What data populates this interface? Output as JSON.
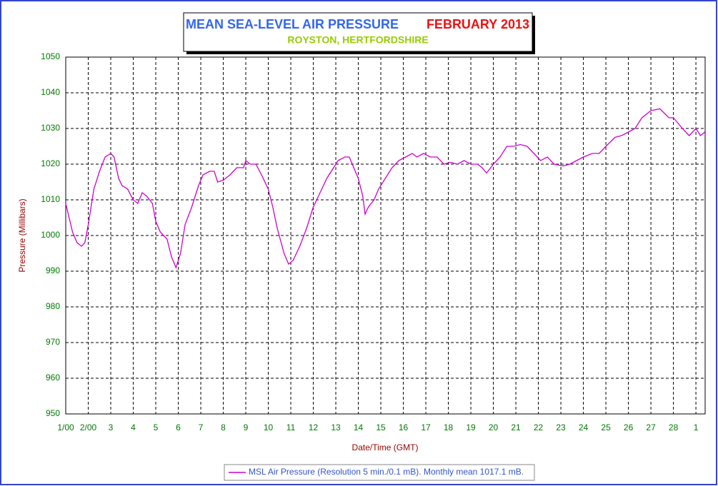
{
  "chart_data": {
    "type": "line",
    "title": "MEAN SEA-LEVEL AIR PRESSURE",
    "title_date": "FEBRUARY 2013",
    "subtitle": "ROYSTON, HERTFORDSHIRE",
    "xlabel": "Date/Time (GMT)",
    "ylabel": "Pressure (Millibars)",
    "x": [
      1,
      1.3,
      1.5,
      1.7,
      1.85,
      2,
      2.25,
      2.5,
      2.75,
      3,
      3.15,
      3.35,
      3.5,
      3.75,
      4,
      4.2,
      4.4,
      4.6,
      4.85,
      5,
      5.2,
      5.5,
      5.7,
      5.9,
      6.1,
      6.3,
      6.6,
      6.9,
      7.1,
      7.4,
      7.6,
      7.75,
      8,
      8.3,
      8.6,
      8.9,
      9,
      9.2,
      9.45,
      9.7,
      10,
      10.2,
      10.4,
      10.7,
      10.9,
      11.1,
      11.4,
      11.7,
      12,
      12.3,
      12.6,
      12.9,
      13.1,
      13.4,
      13.6,
      13.8,
      14,
      14.2,
      14.3,
      14.45,
      14.7,
      14.9,
      15.2,
      15.5,
      15.8,
      16.1,
      16.4,
      16.6,
      16.9,
      17.2,
      17.5,
      17.8,
      18.1,
      18.4,
      18.7,
      19,
      19.3,
      19.5,
      19.7,
      20,
      20.3,
      20.6,
      20.9,
      21.2,
      21.5,
      21.8,
      22.1,
      22.4,
      22.7,
      23.1,
      23.4,
      23.7,
      24,
      24.4,
      24.7,
      25,
      25.4,
      25.7,
      26,
      26.3,
      26.6,
      27,
      27.4,
      27.8,
      28,
      28.4,
      28.7,
      29,
      29.2,
      29.4
    ],
    "series": [
      {
        "name": "MSL Air Pressure (Resolution 5 min./0.1 mB). Monthly mean 1017.1 mB.",
        "color": "#d000d0",
        "values": [
          1009,
          1001,
          998,
          997,
          998,
          1003,
          1013,
          1018,
          1022,
          1023,
          1022,
          1016,
          1014,
          1013,
          1010,
          1009,
          1012,
          1011,
          1009,
          1004,
          1001,
          999,
          994,
          991,
          995,
          1003,
          1008,
          1014,
          1017,
          1018,
          1018,
          1015,
          1015.5,
          1017,
          1019,
          1019,
          1021,
          1020,
          1020,
          1017,
          1013,
          1008,
          1002,
          995,
          992,
          993,
          997,
          1002,
          1008,
          1012,
          1016,
          1019,
          1021,
          1022,
          1022,
          1019,
          1016,
          1011,
          1006,
          1008,
          1010,
          1013,
          1016,
          1019,
          1021,
          1022,
          1023,
          1022,
          1023,
          1022,
          1022,
          1020,
          1020.5,
          1020,
          1021,
          1020,
          1020,
          1019,
          1017.5,
          1020,
          1022,
          1025,
          1025,
          1025.5,
          1025,
          1023,
          1021,
          1022,
          1020,
          1019.5,
          1020,
          1021,
          1022,
          1023,
          1023,
          1025,
          1027.5,
          1028,
          1029,
          1030,
          1033,
          1035,
          1035.5,
          1033,
          1033,
          1030,
          1028,
          1030,
          1028,
          1029
        ]
      }
    ],
    "xlim": [
      1,
      29.41
    ],
    "xticks": [
      {
        "value": 1,
        "label": "1/00"
      },
      {
        "value": 2,
        "label": "2/00"
      },
      3,
      4,
      5,
      6,
      7,
      8,
      9,
      10,
      11,
      12,
      13,
      14,
      15,
      16,
      17,
      18,
      19,
      20,
      21,
      22,
      23,
      24,
      25,
      26,
      27,
      28,
      {
        "value": 29,
        "label": "1"
      }
    ],
    "ylim": [
      950,
      1050
    ],
    "yticks": [
      950,
      960,
      970,
      980,
      990,
      1000,
      1010,
      1020,
      1030,
      1040,
      1050
    ],
    "grid": true
  }
}
